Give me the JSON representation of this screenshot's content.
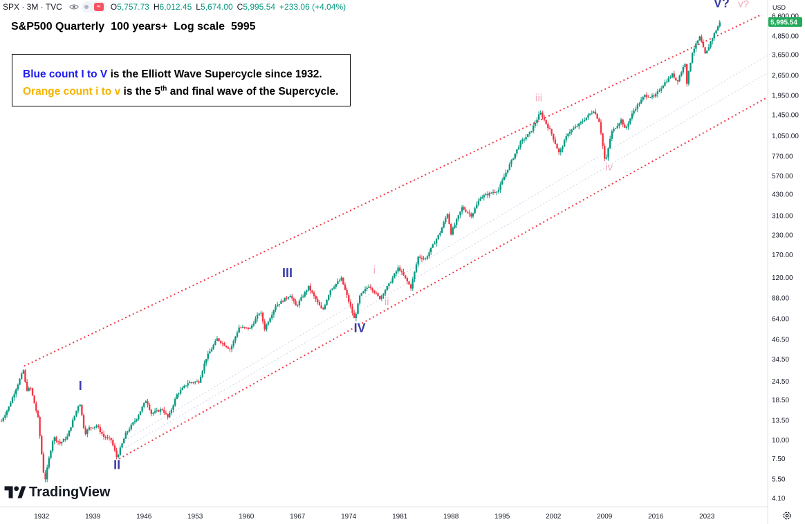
{
  "header": {
    "symbol": "SPX · 3M · TVC",
    "open_key": "O",
    "open": "5,757.73",
    "high_key": "H",
    "high": "6,012.45",
    "low_key": "L",
    "low": "5,674.00",
    "close_key": "C",
    "close": "5,995.54",
    "change": "+233.06 (+4.04%)",
    "currency": "USD"
  },
  "title": "S&P500 Quarterly  100 years+  Log scale  5995",
  "note": {
    "line1_blue": "Blue count I to V",
    "line1_rest": " is the Elliott Wave Supercycle since 1932.",
    "line2_orange": "Orange count i to v",
    "line2_rest_a": " is the 5",
    "line2_sup": "th",
    "line2_rest_b": " and final wave of the Supercycle."
  },
  "logo_text": "TradingView",
  "price_tag": "5,995.54",
  "icons": [
    "eye-icon",
    "indicator-toggle",
    "settings-icon",
    "tradingview-logo"
  ],
  "colors": {
    "up": "#089981",
    "down": "#f23645",
    "channel": "#f23645",
    "blue_label": "#3c3ca8",
    "pink_label": "#f4a7bb",
    "price_tag": "#22ab5c"
  },
  "chart_data": {
    "type": "candlestick",
    "title": "S&P500 Quarterly  100 years+  Log scale  5995",
    "scale": "log",
    "x_ticks": [
      "1932",
      "1939",
      "1946",
      "1953",
      "1960",
      "1967",
      "1974",
      "1981",
      "1988",
      "1995",
      "2002",
      "2009",
      "2016",
      "2023"
    ],
    "y_ticks": [
      "6,600.00",
      "4,850.00",
      "3,650.00",
      "2,650.00",
      "1,950.00",
      "1,450.00",
      "1,050.00",
      "770.00",
      "570.00",
      "430.00",
      "310.00",
      "230.00",
      "170.00",
      "120.00",
      "88.00",
      "64.00",
      "46.50",
      "34.50",
      "24.50",
      "18.50",
      "13.50",
      "10.00",
      "7.50",
      "5.50",
      "4.10"
    ],
    "ylim": [
      3.6,
      8400
    ],
    "xlim": [
      1926.3,
      2031.3
    ],
    "series": [
      {
        "name": "SPX",
        "points": [
          [
            1926.5,
            13.4
          ],
          [
            1927.5,
            16.6
          ],
          [
            1928.5,
            22
          ],
          [
            1929.5,
            29
          ],
          [
            1929.9,
            21.5
          ],
          [
            1930.5,
            22
          ],
          [
            1931.5,
            14
          ],
          [
            1932.4,
            5.2
          ],
          [
            1933.0,
            7.5
          ],
          [
            1933.6,
            10.5
          ],
          [
            1934.5,
            9.5
          ],
          [
            1935.5,
            10.5
          ],
          [
            1936.5,
            14.5
          ],
          [
            1937.2,
            18
          ],
          [
            1937.9,
            11
          ],
          [
            1938.5,
            12
          ],
          [
            1939.5,
            12.5
          ],
          [
            1940.5,
            10.5
          ],
          [
            1941.5,
            10
          ],
          [
            1942.3,
            7.6
          ],
          [
            1943.5,
            11
          ],
          [
            1945.0,
            14
          ],
          [
            1946.3,
            18.5
          ],
          [
            1947.0,
            15
          ],
          [
            1948.5,
            16
          ],
          [
            1949.3,
            14
          ],
          [
            1950.5,
            20
          ],
          [
            1952.0,
            24
          ],
          [
            1953.5,
            24.5
          ],
          [
            1954.5,
            35
          ],
          [
            1956.0,
            47
          ],
          [
            1957.8,
            40
          ],
          [
            1959.0,
            56
          ],
          [
            1960.5,
            55
          ],
          [
            1961.9,
            72
          ],
          [
            1962.5,
            55
          ],
          [
            1964.0,
            78
          ],
          [
            1966.0,
            92
          ],
          [
            1966.8,
            77
          ],
          [
            1968.5,
            104
          ],
          [
            1970.4,
            72
          ],
          [
            1971.5,
            100
          ],
          [
            1973.0,
            118
          ],
          [
            1974.8,
            63
          ],
          [
            1975.5,
            90
          ],
          [
            1976.8,
            107
          ],
          [
            1978.2,
            87
          ],
          [
            1979.5,
            108
          ],
          [
            1980.8,
            140
          ],
          [
            1982.5,
            103
          ],
          [
            1983.5,
            165
          ],
          [
            1984.5,
            160
          ],
          [
            1986.5,
            240
          ],
          [
            1987.6,
            330
          ],
          [
            1987.9,
            230
          ],
          [
            1989.5,
            350
          ],
          [
            1990.8,
            310
          ],
          [
            1992.0,
            410
          ],
          [
            1994.5,
            460
          ],
          [
            1995.5,
            600
          ],
          [
            1997.5,
            950
          ],
          [
            1998.8,
            1100
          ],
          [
            2000.2,
            1500
          ],
          [
            2001.7,
            1100
          ],
          [
            2002.8,
            800
          ],
          [
            2004.0,
            1100
          ],
          [
            2005.5,
            1250
          ],
          [
            2007.5,
            1550
          ],
          [
            2008.3,
            1300
          ],
          [
            2009.1,
            680
          ],
          [
            2009.9,
            1100
          ],
          [
            2011.3,
            1350
          ],
          [
            2011.8,
            1150
          ],
          [
            2013.0,
            1550
          ],
          [
            2014.5,
            1950
          ],
          [
            2015.8,
            1900
          ],
          [
            2017.0,
            2300
          ],
          [
            2018.3,
            2700
          ],
          [
            2018.9,
            2400
          ],
          [
            2020.0,
            3200
          ],
          [
            2020.2,
            2300
          ],
          [
            2021.0,
            3800
          ],
          [
            2022.0,
            4750
          ],
          [
            2022.8,
            3600
          ],
          [
            2023.5,
            4450
          ],
          [
            2024.2,
            5250
          ],
          [
            2024.8,
            5995
          ]
        ]
      }
    ],
    "labels": [
      {
        "text": "I",
        "x": 1937.3,
        "y": 21.5,
        "color": "blue"
      },
      {
        "text": "II",
        "x": 1942.3,
        "y": 6.4,
        "color": "blue"
      },
      {
        "text": "III",
        "x": 1965.6,
        "y": 121,
        "color": "blue"
      },
      {
        "text": "IV",
        "x": 1975.5,
        "y": 52,
        "color": "blue"
      },
      {
        "text": "V?",
        "x": 2025.0,
        "y": 7500,
        "color": "blue"
      },
      {
        "text": "v?",
        "x": 2028.0,
        "y": 7500,
        "color": "pink"
      },
      {
        "text": "i",
        "x": 1977.5,
        "y": 128,
        "color": "pink"
      },
      {
        "text": "ii",
        "x": 1979.2,
        "y": 79,
        "color": "pink"
      },
      {
        "text": "iii",
        "x": 2000.0,
        "y": 1780,
        "color": "pink"
      },
      {
        "text": "iv",
        "x": 2009.6,
        "y": 620,
        "color": "pink"
      }
    ],
    "channel": [
      {
        "from": [
          1929.6,
          31
        ],
        "to": [
          2030.4,
          6700
        ]
      },
      {
        "from": [
          1942.6,
          7.5
        ],
        "to": [
          2031.3,
          1900
        ]
      }
    ]
  }
}
